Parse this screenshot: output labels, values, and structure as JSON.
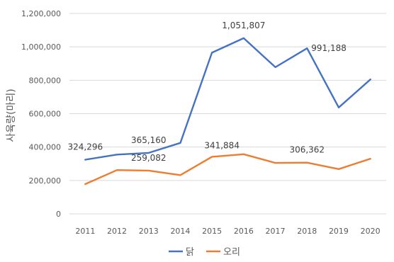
{
  "chart_data": {
    "type": "line",
    "ylabel": "사육량(마리)",
    "ylim": [
      0,
      1200000
    ],
    "y_ticks": [
      "0",
      "200,000",
      "400,000",
      "600,000",
      "800,000",
      "1,000,000",
      "1,200,000"
    ],
    "categories": [
      "2011",
      "2012",
      "2013",
      "2014",
      "2015",
      "2016",
      "2017",
      "2018",
      "2019",
      "2020"
    ],
    "grid": true,
    "legend_position": "bottom",
    "series": [
      {
        "name": "닭",
        "color": "#4472C4",
        "values": [
          324296,
          355000,
          365160,
          425000,
          965000,
          1051807,
          878000,
          991188,
          637000,
          805000
        ]
      },
      {
        "name": "오리",
        "color": "#ED7D31",
        "values": [
          178000,
          262000,
          259082,
          232000,
          341884,
          357000,
          305000,
          306362,
          268000,
          330000
        ]
      }
    ],
    "data_labels": [
      {
        "series": 0,
        "index": 0,
        "text": "324,296"
      },
      {
        "series": 0,
        "index": 2,
        "text": "365,160"
      },
      {
        "series": 0,
        "index": 5,
        "text": "1,051,807"
      },
      {
        "series": 0,
        "index": 7,
        "text": "991,188"
      },
      {
        "series": 1,
        "index": 2,
        "text": "259,082"
      },
      {
        "series": 1,
        "index": 4,
        "text": "341,884"
      },
      {
        "series": 1,
        "index": 7,
        "text": "306,362"
      }
    ]
  }
}
